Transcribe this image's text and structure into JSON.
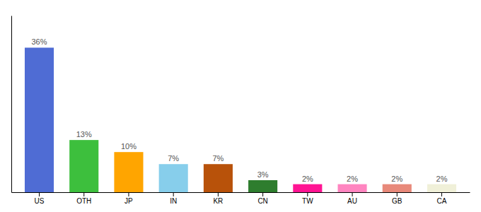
{
  "chart_data": {
    "type": "bar",
    "categories": [
      "US",
      "OTH",
      "JP",
      "IN",
      "KR",
      "CN",
      "TW",
      "AU",
      "GB",
      "CA"
    ],
    "values": [
      36,
      13,
      10,
      7,
      7,
      3,
      2,
      2,
      2,
      2
    ],
    "value_labels": [
      "36%",
      "13%",
      "10%",
      "7%",
      "7%",
      "3%",
      "2%",
      "2%",
      "2%",
      "2%"
    ],
    "colors": [
      "#4F6CD4",
      "#3DBF3D",
      "#FFA500",
      "#87CEEB",
      "#B8520A",
      "#2E7D2E",
      "#FF1493",
      "#FF85C0",
      "#E8897A",
      "#F0F0D8"
    ],
    "ylim": [
      0,
      44
    ],
    "grid": false,
    "data_labels": true,
    "tick_labels": "x"
  }
}
